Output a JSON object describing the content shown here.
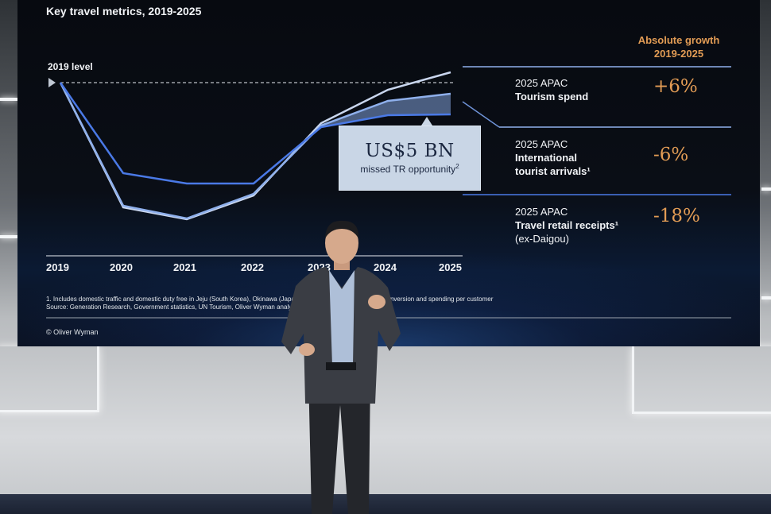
{
  "screen": {
    "title": "Key travel metrics, 2019-2025",
    "level_label": "2019 level",
    "years": [
      "2019",
      "2020",
      "2021",
      "2022",
      "2023",
      "2024",
      "2025"
    ],
    "callout": {
      "value": "US$5 BN",
      "subtitle": "missed TR opportunity",
      "sup": "2"
    },
    "growth_header": [
      "Absolute growth",
      "2019-2025"
    ],
    "metrics": [
      {
        "line1": "2025 APAC",
        "line2": "Tourism spend",
        "line3": "",
        "growth": "+6%"
      },
      {
        "line1": "2025 APAC",
        "line2": "International",
        "line3": "tourist arrivals¹",
        "growth": "-6%"
      },
      {
        "line1": "2025 APAC",
        "line2": "Travel retail receipts¹",
        "line3": "(ex-Daigou)",
        "growth": "-18%"
      }
    ],
    "footnotes": [
      "1. Includes domestic traffic and domestic duty free in Jeju (South Korea), Okinawa (Japan) … estimated based on 2019 conversion and spending per customer",
      "Source: Generation Research, Government statistics, UN Tourism, Oliver Wyman analysis"
    ],
    "copyright": "© Oliver Wyman"
  },
  "colors": {
    "accent_orange": "#e29c55",
    "line_light": "#c9d6ee",
    "line_blue": "#4a79e6",
    "screen_bg": "#070a10"
  }
}
